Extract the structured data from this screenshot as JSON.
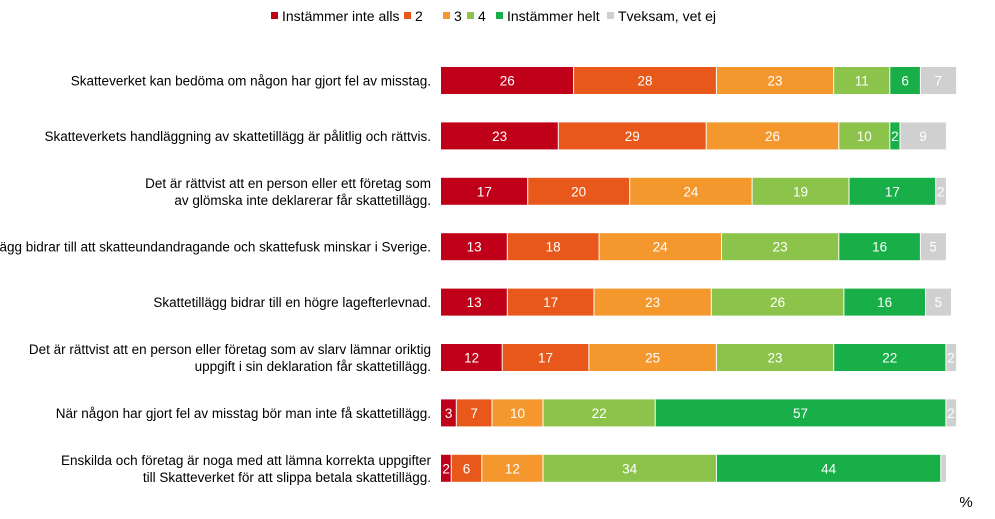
{
  "chart_data": {
    "type": "bar",
    "orientation": "horizontal",
    "stacked": true,
    "unit": "%",
    "legend_position": "top",
    "grid": false,
    "xlim": [
      0,
      100
    ],
    "categories": [
      [
        "Skatteverket kan bedöma om någon har gjort fel av misstag."
      ],
      [
        "Skatteverkets handläggning av skattetillägg är pålitlig och rättvis."
      ],
      [
        "Det är rättvist att en person eller ett företag som",
        "av glömska inte deklarerar får skattetillägg."
      ],
      [
        "Skattetillägg bidrar till att skatteundandragande och skattefusk minskar i Sverige."
      ],
      [
        "Skattetillägg bidrar till en högre lagefterlevnad."
      ],
      [
        "Det är rättvist att en person eller företag som av slarv lämnar oriktig",
        "uppgift i sin deklaration får skattetillägg."
      ],
      [
        "När någon har gjort fel av misstag bör man inte få skattetillägg."
      ],
      [
        "Enskilda och företag är noga med att lämna korrekta uppgifter",
        "till Skatteverket för att slippa betala skattetillägg."
      ]
    ],
    "series": [
      {
        "name": "Instämmer inte alls",
        "color": "#c00018",
        "values": [
          26,
          23,
          17,
          13,
          13,
          12,
          3,
          2
        ]
      },
      {
        "name": "2",
        "color": "#e8581a",
        "values": [
          28,
          29,
          20,
          18,
          17,
          17,
          7,
          6
        ]
      },
      {
        "name": "3",
        "color": "#f4972c",
        "values": [
          23,
          26,
          24,
          24,
          23,
          25,
          10,
          12
        ]
      },
      {
        "name": "4",
        "color": "#8cc34a",
        "values": [
          11,
          10,
          19,
          23,
          26,
          23,
          22,
          34
        ]
      },
      {
        "name": "Instämmer helt",
        "color": "#18ae48",
        "values": [
          6,
          2,
          17,
          16,
          16,
          22,
          57,
          44
        ]
      },
      {
        "name": "Tveksam, vet ej",
        "color": "#d0d0d0",
        "values": [
          7,
          9,
          2,
          5,
          5,
          2,
          2,
          1
        ]
      }
    ],
    "label_hidden": [
      [],
      [],
      [],
      [],
      [],
      [],
      [],
      [
        5
      ]
    ]
  }
}
